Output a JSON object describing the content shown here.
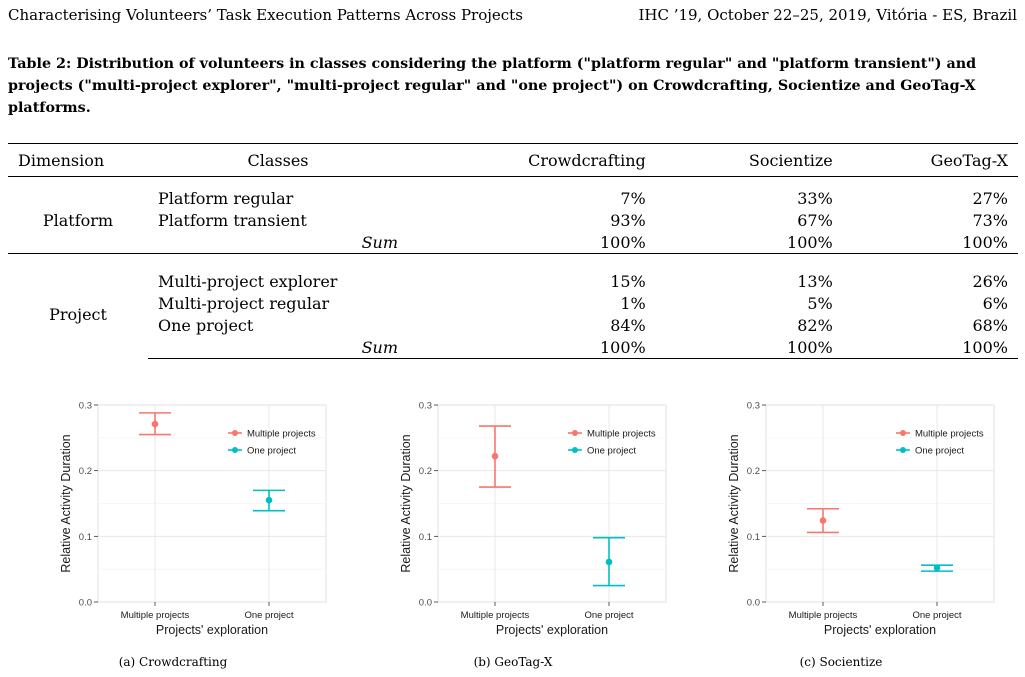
{
  "header": {
    "left": "Characterising Volunteers’ Task Execution Patterns Across Projects",
    "right": "IHC ’19, October 22–25, 2019, Vitória - ES, Brazil"
  },
  "table": {
    "caption": "Table 2: Distribution of volunteers in classes considering the platform (\"platform regular\" and \"platform transient\") and projects (\"multi-project explorer\", \"multi-project regular\" and \"one project\") on Crowdcrafting, Socientize and GeoTag-X platforms.",
    "columns": [
      "Dimension",
      "Classes",
      "Crowdcrafting",
      "Socientize",
      "GeoTag-X"
    ],
    "groups": [
      {
        "dimension": "Platform",
        "rows": [
          {
            "class": "Platform regular",
            "values": [
              "7%",
              "33%",
              "27%"
            ]
          },
          {
            "class": "Platform transient",
            "values": [
              "93%",
              "67%",
              "73%"
            ]
          }
        ],
        "sum": {
          "label": "Sum",
          "values": [
            "100%",
            "100%",
            "100%"
          ]
        }
      },
      {
        "dimension": "Project",
        "rows": [
          {
            "class": "Multi-project explorer",
            "values": [
              "15%",
              "13%",
              "26%"
            ]
          },
          {
            "class": "Multi-project regular",
            "values": [
              "1%",
              "5%",
              "6%"
            ]
          },
          {
            "class": "One project",
            "values": [
              "84%",
              "82%",
              "68%"
            ]
          }
        ],
        "sum": {
          "label": "Sum",
          "values": [
            "100%",
            "100%",
            "100%"
          ]
        }
      }
    ]
  },
  "chart_data": [
    {
      "type": "scatter",
      "caption": "(a) Crowdcrafting",
      "xlabel": "Projects' exploration",
      "ylabel": "Relative Activity Duration",
      "categories": [
        "Multiple projects",
        "One project"
      ],
      "ylim": [
        0,
        0.3
      ],
      "yticks": [
        "0.0",
        "0.1",
        "0.2",
        "0.3"
      ],
      "grid": true,
      "legend_position": "top-right",
      "series": [
        {
          "name": "Multiple projects",
          "color": "#f8766d",
          "category": "Multiple projects",
          "value": 0.271,
          "low": 0.255,
          "high": 0.288
        },
        {
          "name": "One project",
          "color": "#00bfc4",
          "category": "One project",
          "value": 0.155,
          "low": 0.139,
          "high": 0.17
        }
      ]
    },
    {
      "type": "scatter",
      "caption": "(b) GeoTag-X",
      "xlabel": "Projects' exploration",
      "ylabel": "Relative Activity Duration",
      "categories": [
        "Multiple projects",
        "One project"
      ],
      "ylim": [
        0,
        0.3
      ],
      "yticks": [
        "0.0",
        "0.1",
        "0.2",
        "0.3"
      ],
      "grid": true,
      "legend_position": "top-right",
      "series": [
        {
          "name": "Multiple projects",
          "color": "#f8766d",
          "category": "Multiple projects",
          "value": 0.222,
          "low": 0.175,
          "high": 0.268
        },
        {
          "name": "One project",
          "color": "#00bfc4",
          "category": "One project",
          "value": 0.061,
          "low": 0.025,
          "high": 0.098
        }
      ]
    },
    {
      "type": "scatter",
      "caption": "(c) Socientize",
      "xlabel": "Projects' exploration",
      "ylabel": "Relative Activity Duration",
      "categories": [
        "Multiple projects",
        "One project"
      ],
      "ylim": [
        0,
        0.3
      ],
      "yticks": [
        "0.0",
        "0.1",
        "0.2",
        "0.3"
      ],
      "grid": true,
      "legend_position": "top-right",
      "series": [
        {
          "name": "Multiple projects",
          "color": "#f8766d",
          "category": "Multiple projects",
          "value": 0.124,
          "low": 0.106,
          "high": 0.142
        },
        {
          "name": "One project",
          "color": "#00bfc4",
          "category": "One project",
          "value": 0.052,
          "low": 0.047,
          "high": 0.056
        }
      ]
    }
  ]
}
